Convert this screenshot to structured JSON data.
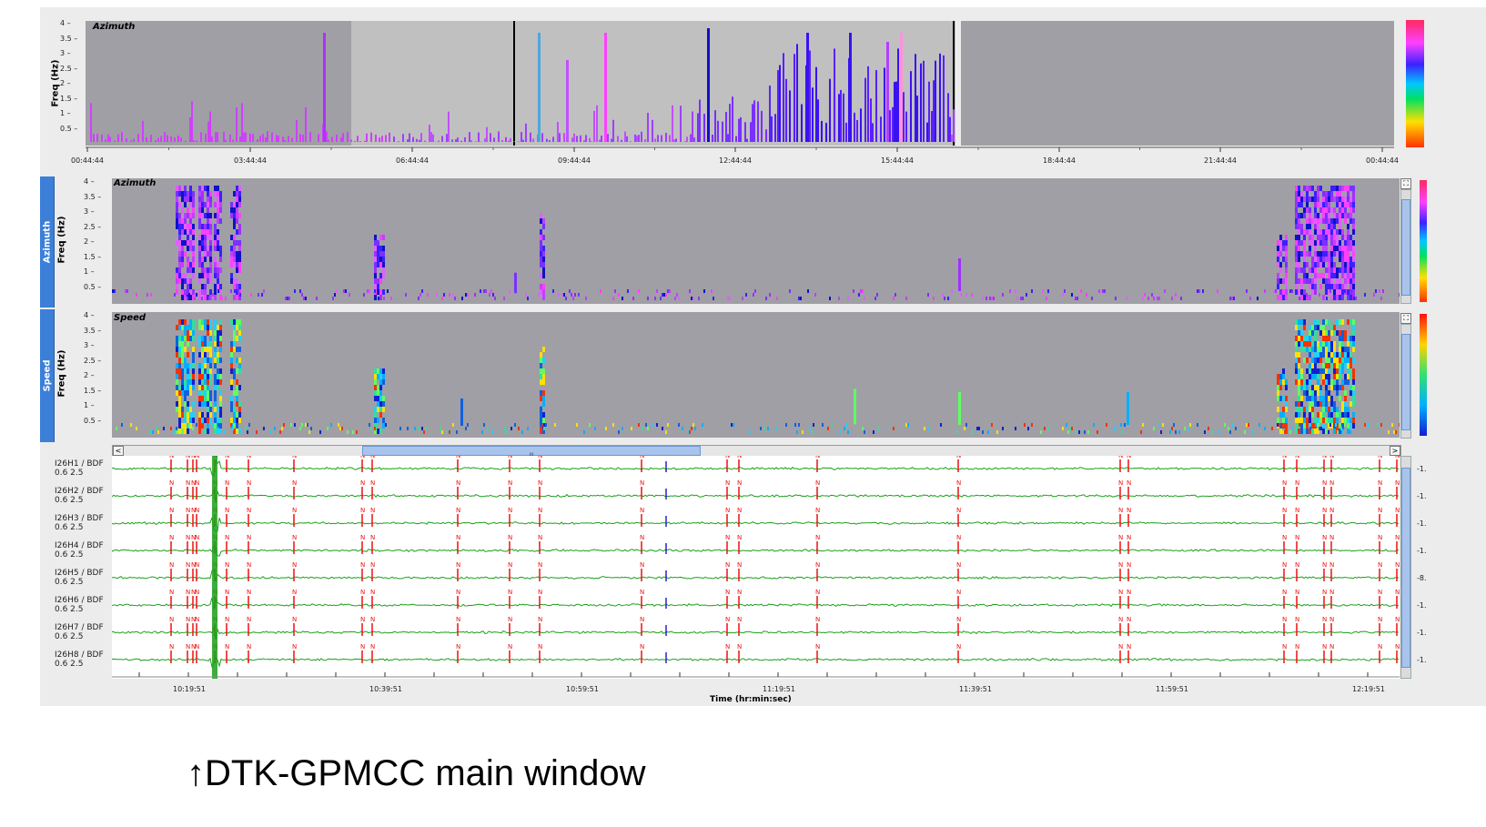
{
  "caption": "↑DTK-GPMCC main window",
  "overview": {
    "title": "Azimuth",
    "ylabel": "Freq (Hz)",
    "yticks": [
      "4",
      "3.5",
      "3",
      "2.5",
      "2",
      "1.5",
      "1",
      "0.5"
    ],
    "xticks": [
      "00:44:44",
      "03:44:44",
      "06:44:44",
      "09:44:44",
      "12:44:44",
      "15:44:44",
      "18:44:44",
      "21:44:44",
      "00:44:44"
    ]
  },
  "azimuth_panel": {
    "tab": "Azimuth",
    "title": "Azimuth",
    "ylabel": "Freq (Hz)",
    "yticks": [
      "4",
      "3.5",
      "3",
      "2.5",
      "2",
      "1.5",
      "1",
      "0.5"
    ]
  },
  "speed_panel": {
    "tab": "Speed",
    "title": "Speed",
    "ylabel": "Freq (Hz)",
    "yticks": [
      "4",
      "3.5",
      "3",
      "2.5",
      "2",
      "1.5",
      "1",
      "0.5"
    ]
  },
  "scrollbar": {
    "left_arrow": "<",
    "right_arrow": ">",
    "thumb_grip": "III"
  },
  "waveforms": {
    "stations": [
      {
        "name": "I26H1 / BDF",
        "band": "0.6 2.5",
        "amp": "-1."
      },
      {
        "name": "I26H2 / BDF",
        "band": "0.6 2.5",
        "amp": "-1."
      },
      {
        "name": "I26H3 / BDF",
        "band": "0.6 2.5",
        "amp": "-1."
      },
      {
        "name": "I26H4 / BDF",
        "band": "0.6 2.5",
        "amp": "-1."
      },
      {
        "name": "I26H5 / BDF",
        "band": "0.6 2.5",
        "amp": "-8."
      },
      {
        "name": "I26H6 / BDF",
        "band": "0.6 2.5",
        "amp": "-1."
      },
      {
        "name": "I26H7 / BDF",
        "band": "0.6 2.5",
        "amp": "-1."
      },
      {
        "name": "I26H8 / BDF",
        "band": "0.6 2.5",
        "amp": "-1."
      }
    ],
    "pick_label": "N",
    "xticks": [
      "10:19:51",
      "10:39:51",
      "10:59:51",
      "11:19:51",
      "11:39:51",
      "11:59:51",
      "12:19:51"
    ],
    "xlabel": "Time (hr:min:sec)"
  },
  "colors": {
    "panel_bg": "#a09fa6",
    "highlight_bg": "#c0c0c0",
    "waveform": "#1aa01a",
    "pick": "#ee1111",
    "pick_blue": "#2222cc",
    "tab": "#3b7fd9"
  }
}
